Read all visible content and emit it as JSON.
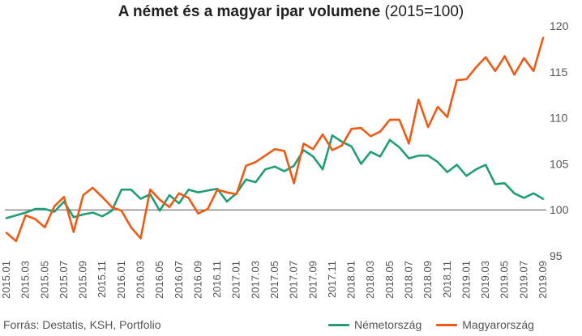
{
  "title_bold": "A német és a magyar ipar volumene",
  "title_rest": " (2015=100)",
  "source": "Forrás: Destatis, KSH, Portfolio",
  "colors": {
    "germany": "#1f9e76",
    "hungary": "#f05a14",
    "axis": "#555555",
    "grid": "#e5e5e5",
    "baseline": "#555555"
  },
  "chart_data": {
    "type": "line",
    "title": "A német és a magyar ipar volumene (2015=100)",
    "xlabel": "",
    "ylabel": "",
    "ylim": [
      95,
      120
    ],
    "yticks": [
      95,
      100,
      105,
      110,
      115,
      120
    ],
    "baseline": 100,
    "grid": false,
    "legend_position": "bottom-right",
    "x": [
      "2015.01",
      "2015.02",
      "2015.03",
      "2015.04",
      "2015.05",
      "2015.06",
      "2015.07",
      "2015.08",
      "2015.09",
      "2015.10",
      "2015.11",
      "2015.12",
      "2016.01",
      "2016.02",
      "2016.03",
      "2016.04",
      "2016.05",
      "2016.06",
      "2016.07",
      "2016.08",
      "2016.09",
      "2016.10",
      "2016.11",
      "2016.12",
      "2017.01",
      "2017.02",
      "2017.03",
      "2017.04",
      "2017.05",
      "2017.06",
      "2017.07",
      "2017.08",
      "2017.09",
      "2017.10",
      "2017.11",
      "2017.12",
      "2018.01",
      "2018.02",
      "2018.03",
      "2018.04",
      "2018.05",
      "2018.06",
      "2018.07",
      "2018.08",
      "2018.09",
      "2018.10",
      "2018.11",
      "2018.12",
      "2019.01",
      "2019.02",
      "2019.03",
      "2019.04",
      "2019.05",
      "2019.06",
      "2019.07",
      "2019.08",
      "2019.09"
    ],
    "x_tick_labels": [
      "2015.01",
      "2015.03",
      "2015.05",
      "2015.07",
      "2015.09",
      "2015.11",
      "2016.01",
      "2016.03",
      "2016.05",
      "2016.07",
      "2016.09",
      "2016.11",
      "2017.01",
      "2017.03",
      "2017.05",
      "2017.07",
      "2017.09",
      "2017.11",
      "2018.01",
      "2018.03",
      "2018.05",
      "2018.07",
      "2018.09",
      "2018.11",
      "2019.01",
      "2019.03",
      "2019.05",
      "2019.07",
      "2019.09"
    ],
    "series": [
      {
        "name": "Németország",
        "color": "#1f9e76",
        "values": [
          99.1,
          99.4,
          99.7,
          100.1,
          100.1,
          99.8,
          100.9,
          99.2,
          99.5,
          99.7,
          99.3,
          99.9,
          102.2,
          102.2,
          101.2,
          101.7,
          99.9,
          101.6,
          100.7,
          102.2,
          101.9,
          102.1,
          102.3,
          100.9,
          101.8,
          103.3,
          103.0,
          104.4,
          104.7,
          104.2,
          104.8,
          106.5,
          105.8,
          104.4,
          108.1,
          107.4,
          106.9,
          105.0,
          106.3,
          105.8,
          107.6,
          106.8,
          105.6,
          105.9,
          105.9,
          105.2,
          104.1,
          104.9,
          103.7,
          104.4,
          104.9,
          102.8,
          102.9,
          101.8,
          101.3,
          101.8,
          101.2
        ]
      },
      {
        "name": "Magyarország",
        "color": "#f05a14",
        "values": [
          97.5,
          96.6,
          99.4,
          99.0,
          98.1,
          100.4,
          101.4,
          97.6,
          101.6,
          102.4,
          101.4,
          100.3,
          99.9,
          98.1,
          96.9,
          102.2,
          101.1,
          100.3,
          101.8,
          101.3,
          99.6,
          100.1,
          102.2,
          101.9,
          101.7,
          104.8,
          105.2,
          105.9,
          106.6,
          106.4,
          102.9,
          107.2,
          106.6,
          108.2,
          106.5,
          107.0,
          108.8,
          108.9,
          108.0,
          108.5,
          109.8,
          109.8,
          107.2,
          112.0,
          109.0,
          111.2,
          110.1,
          114.1,
          114.2,
          115.5,
          116.6,
          115.1,
          116.7,
          114.7,
          116.5,
          115.1,
          118.7
        ]
      }
    ]
  }
}
